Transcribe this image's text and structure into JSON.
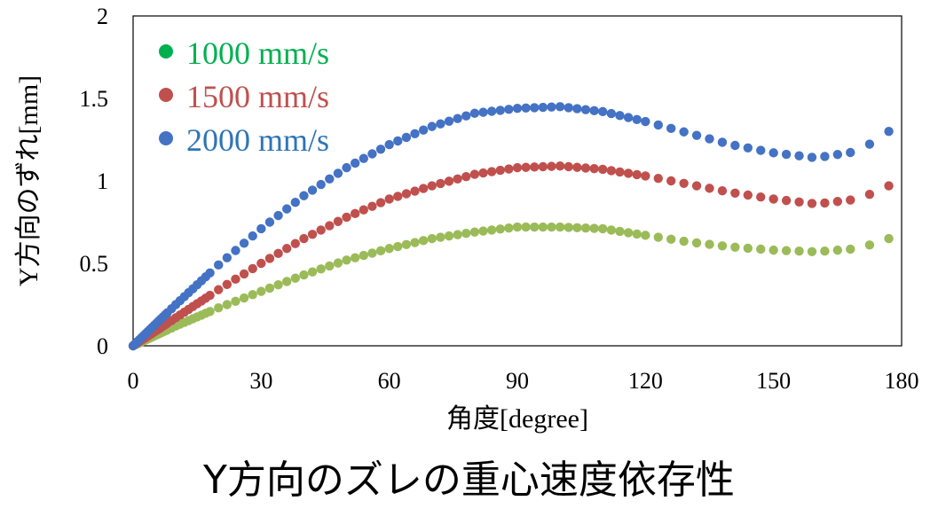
{
  "caption": "Y方向のズレの重心速度依存性",
  "chart_data": {
    "type": "scatter",
    "title": "",
    "xlabel": "角度[degree]",
    "ylabel": "Y方向のずれ[mm]",
    "xlim": [
      0,
      180
    ],
    "ylim": [
      0,
      2
    ],
    "xticks": [
      "0",
      "30",
      "60",
      "90",
      "120",
      "150",
      "180"
    ],
    "yticks": [
      "0",
      "0.5",
      "1",
      "1.5",
      "2"
    ],
    "grid": false,
    "legend_position": "top-left",
    "legend": [
      {
        "label": "1000 mm/s",
        "marker_color": "#00b050",
        "text_color": "#00b050"
      },
      {
        "label": "1500 mm/s",
        "marker_color": "#c0504d",
        "text_color": "#c0504d"
      },
      {
        "label": "2000 mm/s",
        "marker_color": "#4472c4",
        "text_color": "#2e75b6"
      }
    ],
    "series": [
      {
        "point_color": "#9bbb59",
        "x": [
          0,
          10,
          20,
          30,
          40,
          50,
          60,
          70,
          80,
          90,
          100,
          110,
          120,
          130,
          140,
          150,
          160,
          170,
          177
        ],
        "y": [
          0,
          0.12,
          0.23,
          0.33,
          0.43,
          0.52,
          0.59,
          0.65,
          0.69,
          0.72,
          0.72,
          0.71,
          0.67,
          0.63,
          0.6,
          0.58,
          0.57,
          0.59,
          0.65
        ]
      },
      {
        "point_color": "#c0504d",
        "x": [
          0,
          10,
          20,
          30,
          40,
          50,
          60,
          70,
          80,
          90,
          100,
          110,
          120,
          130,
          140,
          150,
          160,
          170,
          177
        ],
        "y": [
          0,
          0.17,
          0.34,
          0.5,
          0.65,
          0.78,
          0.89,
          0.97,
          1.04,
          1.08,
          1.09,
          1.07,
          1.03,
          0.98,
          0.93,
          0.89,
          0.86,
          0.89,
          0.97
        ]
      },
      {
        "point_color": "#4472c4",
        "x": [
          0,
          10,
          20,
          30,
          40,
          50,
          60,
          70,
          80,
          90,
          100,
          110,
          120,
          130,
          140,
          150,
          160,
          170,
          177
        ],
        "y": [
          0,
          0.25,
          0.49,
          0.71,
          0.91,
          1.08,
          1.22,
          1.33,
          1.41,
          1.44,
          1.45,
          1.42,
          1.36,
          1.29,
          1.22,
          1.17,
          1.14,
          1.18,
          1.3
        ]
      }
    ]
  }
}
